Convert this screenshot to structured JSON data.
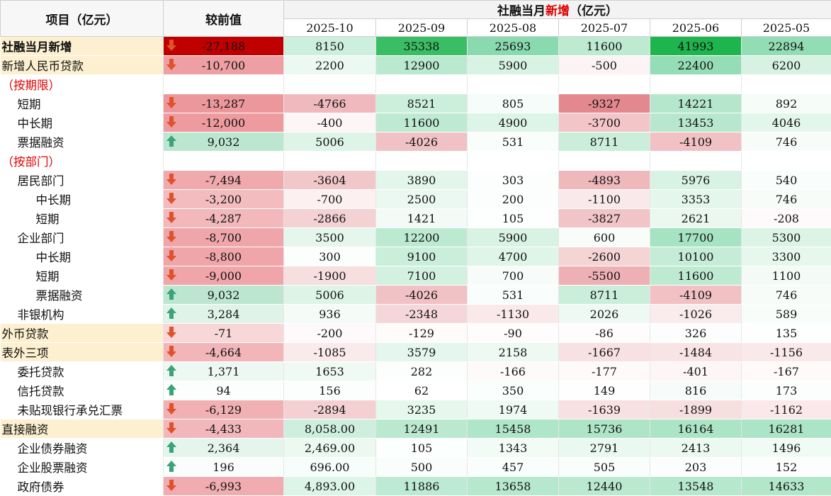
{
  "header": {
    "item_label": "项目（亿元）",
    "change_label": "较前值",
    "group_prefix": "社融当月",
    "group_highlight": "新增",
    "group_suffix": "（亿元）",
    "months": [
      "2025-10",
      "2025-09",
      "2025-08",
      "2025-07",
      "2025-06",
      "2025-05"
    ]
  },
  "colors": {
    "up_arrow": "#3aa37a",
    "down_arrow": "#e0522b",
    "highlight_text": "#e00000",
    "label_fill": "#fdf0d0"
  },
  "rows": [
    {
      "label": "社融当月新增",
      "level": 0,
      "bold": true,
      "change": "-27,188",
      "dir": "down",
      "values": [
        "8150",
        "35338",
        "25693",
        "11600",
        "41993",
        "22894"
      ]
    },
    {
      "label": "新增人民币贷款",
      "level": 0,
      "change": "-10,700",
      "dir": "down",
      "values": [
        "2200",
        "12900",
        "5900",
        "-500",
        "22400",
        "6200"
      ]
    },
    {
      "label": "（按期限）",
      "section": true
    },
    {
      "label": "短期",
      "level": 1,
      "change": "-13,287",
      "dir": "down",
      "values": [
        "-4766",
        "8521",
        "805",
        "-9327",
        "14221",
        "892"
      ]
    },
    {
      "label": "中长期",
      "level": 1,
      "change": "-12,000",
      "dir": "down",
      "values": [
        "-400",
        "11600",
        "4900",
        "-3700",
        "13453",
        "4046"
      ]
    },
    {
      "label": "票据融资",
      "level": 1,
      "change": "9,032",
      "dir": "up",
      "values": [
        "5006",
        "-4026",
        "531",
        "8711",
        "-4109",
        "746"
      ]
    },
    {
      "label": "（按部门）",
      "section": true
    },
    {
      "label": "居民部门",
      "level": 1,
      "change": "-7,494",
      "dir": "down",
      "values": [
        "-3604",
        "3890",
        "303",
        "-4893",
        "5976",
        "540"
      ]
    },
    {
      "label": "中长期",
      "level": 2,
      "change": "-3,200",
      "dir": "down",
      "values": [
        "-700",
        "2500",
        "200",
        "-1100",
        "3353",
        "746"
      ]
    },
    {
      "label": "短期",
      "level": 2,
      "change": "-4,287",
      "dir": "down",
      "values": [
        "-2866",
        "1421",
        "105",
        "-3827",
        "2621",
        "-208"
      ]
    },
    {
      "label": "企业部门",
      "level": 1,
      "change": "-8,700",
      "dir": "down",
      "values": [
        "3500",
        "12200",
        "5900",
        "600",
        "17700",
        "5300"
      ]
    },
    {
      "label": "中长期",
      "level": 2,
      "change": "-8,800",
      "dir": "down",
      "values": [
        "300",
        "9100",
        "4700",
        "-2600",
        "10100",
        "3300"
      ]
    },
    {
      "label": "短期",
      "level": 2,
      "change": "-9,000",
      "dir": "down",
      "values": [
        "-1900",
        "7100",
        "700",
        "-5500",
        "11600",
        "1100"
      ]
    },
    {
      "label": "票据融资",
      "level": 2,
      "change": "9,032",
      "dir": "up",
      "values": [
        "5006",
        "-4026",
        "531",
        "8711",
        "-4109",
        "746"
      ]
    },
    {
      "label": "非银机构",
      "level": 1,
      "change": "3,284",
      "dir": "up",
      "values": [
        "936",
        "-2348",
        "-1130",
        "2026",
        "-1026",
        "589"
      ]
    },
    {
      "label": "外币贷款",
      "level": 0,
      "change": "-71",
      "dir": "down",
      "values": [
        "-200",
        "-129",
        "-90",
        "-86",
        "326",
        "135"
      ]
    },
    {
      "label": "表外三项",
      "level": 0,
      "change": "-4,664",
      "dir": "down",
      "values": [
        "-1085",
        "3579",
        "2158",
        "-1667",
        "-1484",
        "-1156"
      ]
    },
    {
      "label": "委托贷款",
      "level": 1,
      "change": "1,371",
      "dir": "up",
      "values": [
        "1653",
        "282",
        "-166",
        "-177",
        "-401",
        "-167"
      ]
    },
    {
      "label": "信托贷款",
      "level": 1,
      "change": "94",
      "dir": "up",
      "values": [
        "156",
        "62",
        "350",
        "149",
        "816",
        "173"
      ]
    },
    {
      "label": "未贴现银行承兑汇票",
      "level": 1,
      "change": "-6,129",
      "dir": "down",
      "values": [
        "-2894",
        "3235",
        "1974",
        "-1639",
        "-1899",
        "-1162"
      ]
    },
    {
      "label": "直接融资",
      "level": 0,
      "change": "-4,433",
      "dir": "down",
      "values": [
        "8,058.00",
        "12491",
        "15458",
        "15736",
        "16164",
        "16281"
      ]
    },
    {
      "label": "企业债券融资",
      "level": 1,
      "change": "2,364",
      "dir": "up",
      "values": [
        "2,469.00",
        "105",
        "1343",
        "2791",
        "2413",
        "1496"
      ]
    },
    {
      "label": "企业股票融资",
      "level": 1,
      "change": "196",
      "dir": "up",
      "values": [
        "696.00",
        "500",
        "457",
        "505",
        "203",
        "152"
      ]
    },
    {
      "label": "政府债券",
      "level": 1,
      "change": "-6,993",
      "dir": "down",
      "values": [
        "4,893.00",
        "11886",
        "13658",
        "12440",
        "13548",
        "14633"
      ]
    }
  ]
}
